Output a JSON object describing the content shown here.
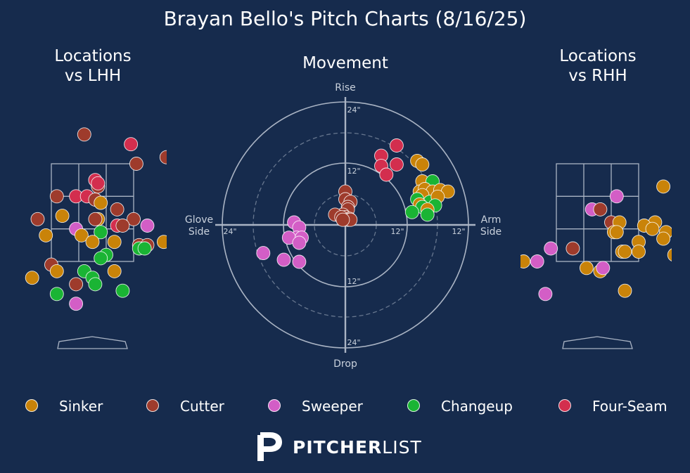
{
  "title": "Brayan Bello's Pitch Charts (8/16/25)",
  "panels": {
    "lhh_title_line1": "Locations",
    "lhh_title_line2": "vs LHH",
    "movement_title": "Movement",
    "rhh_title_line1": "Locations",
    "rhh_title_line2": "vs RHH"
  },
  "movement_axis": {
    "top": "Rise",
    "bottom": "Drop",
    "left_line1": "Glove",
    "left_line2": "Side",
    "right_line1": "Arm",
    "right_line2": "Side",
    "ring_labels": [
      "24\"",
      "12\"",
      "12\"",
      "24\"",
      "24\"",
      "12\"",
      "12\"",
      "24\""
    ]
  },
  "colors": {
    "background": "#162b4d",
    "Sinker": "#c98309",
    "Cutter": "#9e3b2c",
    "Sweeper": "#d35ec6",
    "Changeup": "#1ab434",
    "Four-Seam": "#d32e4e",
    "grid": "#aab4c4"
  },
  "legend": [
    {
      "name": "Sinker"
    },
    {
      "name": "Cutter"
    },
    {
      "name": "Sweeper"
    },
    {
      "name": "Changeup"
    },
    {
      "name": "Four-Seam"
    }
  ],
  "brand": {
    "icon": "pitcherlist-p-icon",
    "bold": "PITCHER",
    "light": "LIST"
  },
  "chart_data": [
    {
      "type": "scatter",
      "title": "Locations vs LHH",
      "units": "strike-zone grid coordinates (zone = 3x3 cells)",
      "points": [
        {
          "pitch": "Cutter",
          "x": 1.2,
          "y": -0.9
        },
        {
          "pitch": "Four-Seam",
          "x": 2.9,
          "y": -0.6
        },
        {
          "pitch": "Cutter",
          "x": 3.1,
          "y": 0.0
        },
        {
          "pitch": "Four-Seam",
          "x": 1.6,
          "y": 0.5
        },
        {
          "pitch": "Cutter",
          "x": 1.7,
          "y": 0.7
        },
        {
          "pitch": "Four-Seam",
          "x": 1.7,
          "y": 0.6
        },
        {
          "pitch": "Cutter",
          "x": 0.2,
          "y": 1.0
        },
        {
          "pitch": "Four-Seam",
          "x": 0.9,
          "y": 1.0
        },
        {
          "pitch": "Four-Seam",
          "x": 1.3,
          "y": 1.0
        },
        {
          "pitch": "Cutter",
          "x": 1.6,
          "y": 1.1
        },
        {
          "pitch": "Sinker",
          "x": 1.8,
          "y": 1.2
        },
        {
          "pitch": "Cutter",
          "x": 2.4,
          "y": 1.4
        },
        {
          "pitch": "Cutter",
          "x": -0.5,
          "y": 1.7
        },
        {
          "pitch": "Sinker",
          "x": 0.4,
          "y": 1.6
        },
        {
          "pitch": "Sinker",
          "x": 1.7,
          "y": 1.7
        },
        {
          "pitch": "Cutter",
          "x": 1.6,
          "y": 1.7
        },
        {
          "pitch": "Cutter",
          "x": 3.0,
          "y": 1.7
        },
        {
          "pitch": "Four-Seam",
          "x": 2.4,
          "y": 1.9
        },
        {
          "pitch": "Sweeper",
          "x": 0.9,
          "y": 2.0
        },
        {
          "pitch": "Cutter",
          "x": 2.6,
          "y": 1.9
        },
        {
          "pitch": "Sweeper",
          "x": 3.5,
          "y": 1.9
        },
        {
          "pitch": "Changeup",
          "x": 1.8,
          "y": 2.1
        },
        {
          "pitch": "Sinker",
          "x": 1.1,
          "y": 2.2
        },
        {
          "pitch": "Sinker",
          "x": 1.5,
          "y": 2.4
        },
        {
          "pitch": "Sinker",
          "x": 2.3,
          "y": 2.4
        },
        {
          "pitch": "Sinker",
          "x": -0.2,
          "y": 2.2
        },
        {
          "pitch": "Sinker",
          "x": 4.1,
          "y": 2.4
        },
        {
          "pitch": "Cutter",
          "x": 3.2,
          "y": 2.5
        },
        {
          "pitch": "Cutter",
          "x": 3.5,
          "y": 2.5
        },
        {
          "pitch": "Changeup",
          "x": 3.2,
          "y": 2.6
        },
        {
          "pitch": "Changeup",
          "x": 3.4,
          "y": 2.6
        },
        {
          "pitch": "Changeup",
          "x": 2.0,
          "y": 2.8
        },
        {
          "pitch": "Changeup",
          "x": 1.8,
          "y": 2.9
        },
        {
          "pitch": "Cutter",
          "x": -0.0,
          "y": 3.1
        },
        {
          "pitch": "Sinker",
          "x": 0.2,
          "y": 3.3
        },
        {
          "pitch": "Changeup",
          "x": 1.2,
          "y": 3.3
        },
        {
          "pitch": "Sinker",
          "x": 2.3,
          "y": 3.3
        },
        {
          "pitch": "Changeup",
          "x": 1.5,
          "y": 3.5
        },
        {
          "pitch": "Changeup",
          "x": 1.6,
          "y": 3.7
        },
        {
          "pitch": "Cutter",
          "x": 0.9,
          "y": 3.7
        },
        {
          "pitch": "Sinker",
          "x": -0.7,
          "y": 3.5
        },
        {
          "pitch": "Changeup",
          "x": 0.2,
          "y": 4.0
        },
        {
          "pitch": "Changeup",
          "x": 2.6,
          "y": 3.9
        },
        {
          "pitch": "Sweeper",
          "x": 0.9,
          "y": 4.3
        },
        {
          "pitch": "Cutter",
          "x": 4.2,
          "y": -0.2
        }
      ]
    },
    {
      "type": "scatter",
      "title": "Movement",
      "units": "inches; x = horizontal break (+ arm side), y = induced vertical break (+ rise)",
      "xlim": [
        -24,
        24
      ],
      "ylim": [
        -24,
        24
      ],
      "points": [
        {
          "pitch": "Four-Seam",
          "x": 10.0,
          "y": 15.5
        },
        {
          "pitch": "Four-Seam",
          "x": 7.0,
          "y": 13.5
        },
        {
          "pitch": "Four-Seam",
          "x": 7.0,
          "y": 11.5
        },
        {
          "pitch": "Four-Seam",
          "x": 10.0,
          "y": 11.8
        },
        {
          "pitch": "Four-Seam",
          "x": 8.0,
          "y": 9.8
        },
        {
          "pitch": "Sinker",
          "x": 14.0,
          "y": 12.5
        },
        {
          "pitch": "Sinker",
          "x": 15.0,
          "y": 11.8
        },
        {
          "pitch": "Sinker",
          "x": 15.0,
          "y": 8.5
        },
        {
          "pitch": "Changeup",
          "x": 17.0,
          "y": 8.5
        },
        {
          "pitch": "Sinker",
          "x": 14.5,
          "y": 6.5
        },
        {
          "pitch": "Sinker",
          "x": 15.5,
          "y": 7.0
        },
        {
          "pitch": "Sinker",
          "x": 17.0,
          "y": 6.5
        },
        {
          "pitch": "Sinker",
          "x": 18.5,
          "y": 6.8
        },
        {
          "pitch": "Sinker",
          "x": 20.0,
          "y": 6.5
        },
        {
          "pitch": "Sinker",
          "x": 15.0,
          "y": 5.8
        },
        {
          "pitch": "Changeup",
          "x": 16.5,
          "y": 4.5
        },
        {
          "pitch": "Sinker",
          "x": 18.0,
          "y": 5.5
        },
        {
          "pitch": "Changeup",
          "x": 14.0,
          "y": 5.0
        },
        {
          "pitch": "Sinker",
          "x": 14.5,
          "y": 4.0
        },
        {
          "pitch": "Changeup",
          "x": 15.0,
          "y": 3.5
        },
        {
          "pitch": "Changeup",
          "x": 17.5,
          "y": 3.8
        },
        {
          "pitch": "Sinker",
          "x": 16.0,
          "y": 3.0
        },
        {
          "pitch": "Changeup",
          "x": 13.0,
          "y": 2.5
        },
        {
          "pitch": "Changeup",
          "x": 16.0,
          "y": 2.0
        },
        {
          "pitch": "Cutter",
          "x": 0.0,
          "y": 6.5
        },
        {
          "pitch": "Cutter",
          "x": 0.0,
          "y": 5.0
        },
        {
          "pitch": "Cutter",
          "x": 1.0,
          "y": 4.5
        },
        {
          "pitch": "Cutter",
          "x": 0.5,
          "y": 3.5
        },
        {
          "pitch": "Cutter",
          "x": 0.5,
          "y": 3.0
        },
        {
          "pitch": "Cutter",
          "x": -0.5,
          "y": 2.0
        },
        {
          "pitch": "Cutter",
          "x": -2.0,
          "y": 2.0
        },
        {
          "pitch": "Cutter",
          "x": 0.0,
          "y": 1.5
        },
        {
          "pitch": "Cutter",
          "x": 0.8,
          "y": 1.2
        },
        {
          "pitch": "Cutter",
          "x": -0.8,
          "y": 1.5
        },
        {
          "pitch": "Cutter",
          "x": 0.5,
          "y": 1.0
        },
        {
          "pitch": "Cutter",
          "x": 1.0,
          "y": 1.0
        },
        {
          "pitch": "Cutter",
          "x": -0.5,
          "y": 1.0
        },
        {
          "pitch": "Sweeper",
          "x": -10.0,
          "y": 0.5
        },
        {
          "pitch": "Sweeper",
          "x": -9.0,
          "y": -0.5
        },
        {
          "pitch": "Sweeper",
          "x": -9.5,
          "y": -2.5
        },
        {
          "pitch": "Sweeper",
          "x": -11.0,
          "y": -2.5
        },
        {
          "pitch": "Sweeper",
          "x": -8.5,
          "y": -2.5
        },
        {
          "pitch": "Sweeper",
          "x": -9.0,
          "y": -3.5
        },
        {
          "pitch": "Sweeper",
          "x": -16.0,
          "y": -5.5
        },
        {
          "pitch": "Sweeper",
          "x": -12.0,
          "y": -6.8
        },
        {
          "pitch": "Sweeper",
          "x": -9.0,
          "y": -7.2
        }
      ]
    },
    {
      "type": "scatter",
      "title": "Locations vs RHH",
      "units": "strike-zone grid coordinates (zone = 3x3 cells)",
      "points": [
        {
          "pitch": "Sinker",
          "x": 3.9,
          "y": 0.7
        },
        {
          "pitch": "Sweeper",
          "x": 2.2,
          "y": 1.0
        },
        {
          "pitch": "Sweeper",
          "x": 1.3,
          "y": 1.4
        },
        {
          "pitch": "Cutter",
          "x": 1.6,
          "y": 1.4
        },
        {
          "pitch": "Cutter",
          "x": 2.0,
          "y": 1.8
        },
        {
          "pitch": "Sinker",
          "x": 2.3,
          "y": 1.8
        },
        {
          "pitch": "Sinker",
          "x": 3.6,
          "y": 1.8
        },
        {
          "pitch": "Sinker",
          "x": 3.2,
          "y": 1.9
        },
        {
          "pitch": "Sinker",
          "x": 3.5,
          "y": 2.0
        },
        {
          "pitch": "Sinker",
          "x": 4.0,
          "y": 2.1
        },
        {
          "pitch": "Sinker",
          "x": 2.1,
          "y": 2.1
        },
        {
          "pitch": "Sinker",
          "x": 2.2,
          "y": 2.1
        },
        {
          "pitch": "Sinker",
          "x": 3.9,
          "y": 2.3
        },
        {
          "pitch": "Sinker",
          "x": 3.0,
          "y": 2.4
        },
        {
          "pitch": "Sinker",
          "x": 2.4,
          "y": 2.7
        },
        {
          "pitch": "Sinker",
          "x": 2.5,
          "y": 2.7
        },
        {
          "pitch": "Sinker",
          "x": 3.0,
          "y": 2.7
        },
        {
          "pitch": "Sweeper",
          "x": -0.2,
          "y": 2.6
        },
        {
          "pitch": "Cutter",
          "x": 0.6,
          "y": 2.6
        },
        {
          "pitch": "Sinker",
          "x": -1.2,
          "y": 3.0
        },
        {
          "pitch": "Sweeper",
          "x": -0.7,
          "y": 3.0
        },
        {
          "pitch": "Sinker",
          "x": 4.3,
          "y": 2.8
        },
        {
          "pitch": "Sinker",
          "x": 1.1,
          "y": 3.2
        },
        {
          "pitch": "Sinker",
          "x": 1.6,
          "y": 3.3
        },
        {
          "pitch": "Sweeper",
          "x": 1.7,
          "y": 3.2
        },
        {
          "pitch": "Sweeper",
          "x": -0.4,
          "y": 4.0
        },
        {
          "pitch": "Sinker",
          "x": 2.5,
          "y": 3.9
        }
      ]
    }
  ]
}
